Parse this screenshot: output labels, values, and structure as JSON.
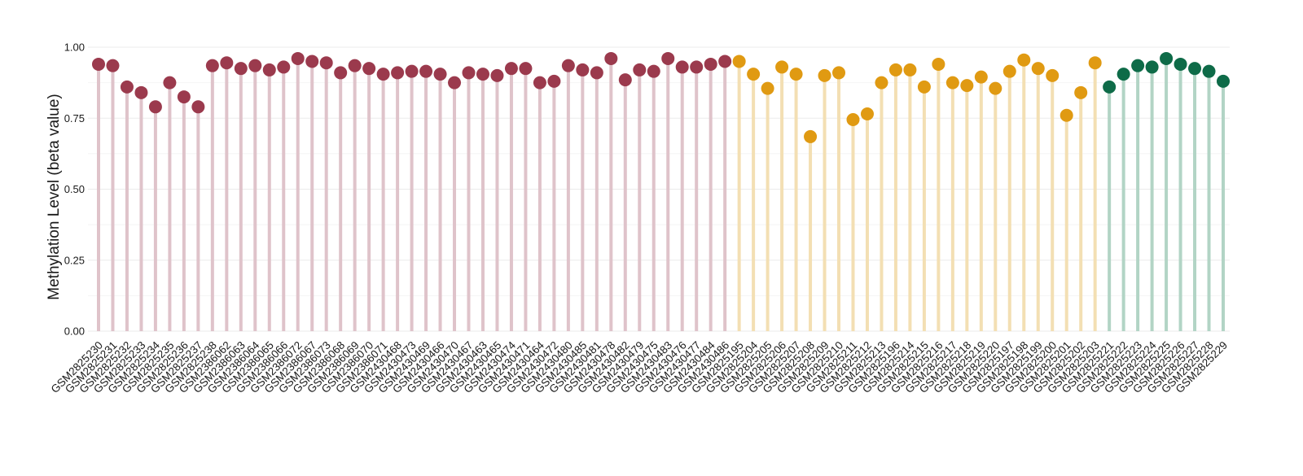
{
  "chart_data": {
    "type": "lollipop",
    "title": "",
    "xlabel": "",
    "ylabel": "Methylation Level (beta value)",
    "ylim": [
      0,
      1
    ],
    "yticks": [
      "0.00",
      "0.25",
      "0.50",
      "0.75",
      "1.00"
    ],
    "grid": true,
    "legend": "none",
    "groups": [
      {
        "color": "#9b3a4d",
        "stem_color": "#dfc3ca",
        "samples": [
          "GSM2825230",
          "GSM2825231",
          "GSM2825232",
          "GSM2825233",
          "GSM2825234",
          "GSM2825235",
          "GSM2825236",
          "GSM2825237",
          "GSM2825238",
          "GSM2386062",
          "GSM2386063",
          "GSM2386064",
          "GSM2386065",
          "GSM2386066",
          "GSM2386072",
          "GSM2386067",
          "GSM2386073",
          "GSM2386068",
          "GSM2386069",
          "GSM2386070",
          "GSM2386071",
          "GSM2430468",
          "GSM2430473",
          "GSM2430469",
          "GSM2430466",
          "GSM2430470",
          "GSM2430467",
          "GSM2430463",
          "GSM2430465",
          "GSM2430474",
          "GSM2430471",
          "GSM2430464",
          "GSM2430472",
          "GSM2430480",
          "GSM2430485",
          "GSM2430481",
          "GSM2430478",
          "GSM2430482",
          "GSM2430479",
          "GSM2430475",
          "GSM2430483",
          "GSM2430476",
          "GSM2430477",
          "GSM2430484",
          "GSM2430486"
        ],
        "values": [
          0.94,
          0.935,
          0.86,
          0.84,
          0.79,
          0.875,
          0.825,
          0.79,
          0.935,
          0.945,
          0.925,
          0.935,
          0.92,
          0.93,
          0.96,
          0.95,
          0.945,
          0.91,
          0.935,
          0.925,
          0.905,
          0.91,
          0.915,
          0.915,
          0.905,
          0.875,
          0.91,
          0.905,
          0.9,
          0.925,
          0.925,
          0.875,
          0.88,
          0.935,
          0.92,
          0.91,
          0.96,
          0.885,
          0.92,
          0.915,
          0.96,
          0.93,
          0.93,
          0.94,
          0.95
        ]
      },
      {
        "color": "#e09a12",
        "stem_color": "#f3dfb3",
        "samples": [
          "GSM2825195",
          "GSM2825204",
          "GSM2825205",
          "GSM2825206",
          "GSM2825207",
          "GSM2825208",
          "GSM2825209",
          "GSM2825210",
          "GSM2825211",
          "GSM2825212",
          "GSM2825213",
          "GSM2825196",
          "GSM2825214",
          "GSM2825215",
          "GSM2825216",
          "GSM2825217",
          "GSM2825218",
          "GSM2825219",
          "GSM2825220",
          "GSM2825197",
          "GSM2825198",
          "GSM2825199",
          "GSM2825200",
          "GSM2825201",
          "GSM2825202",
          "GSM2825203"
        ],
        "values": [
          0.95,
          0.905,
          0.855,
          0.93,
          0.905,
          0.685,
          0.9,
          0.91,
          0.745,
          0.765,
          0.875,
          0.92,
          0.92,
          0.86,
          0.94,
          0.875,
          0.865,
          0.895,
          0.855,
          0.915,
          0.955,
          0.925,
          0.9,
          0.76,
          0.84,
          0.945
        ]
      },
      {
        "color": "#0e6b48",
        "stem_color": "#b2d4c5",
        "samples": [
          "GSM2825221",
          "GSM2825222",
          "GSM2825223",
          "GSM2825224",
          "GSM2825225",
          "GSM2825226",
          "GSM2825227",
          "GSM2825228",
          "GSM2825229"
        ],
        "values": [
          0.86,
          0.905,
          0.935,
          0.93,
          0.96,
          0.94,
          0.925,
          0.915,
          0.88
        ]
      }
    ]
  }
}
